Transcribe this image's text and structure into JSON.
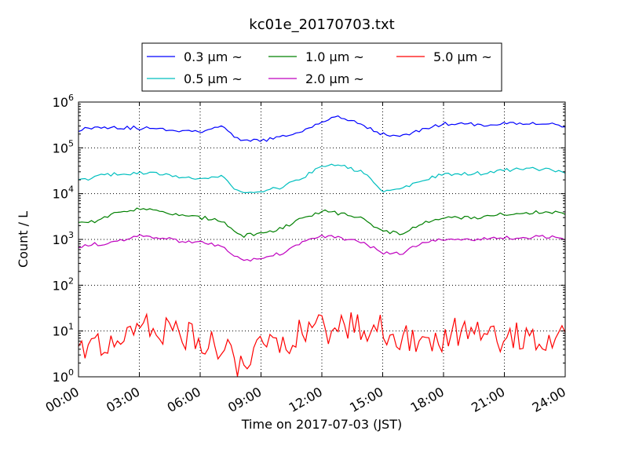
{
  "chart_data": {
    "type": "line",
    "title": "kc01e_20170703.txt",
    "xlabel": "Time on 2017-07-03 (JST)",
    "ylabel": "Count / L",
    "yscale": "log",
    "ylim": [
      1,
      1000000
    ],
    "xlim": [
      "00:00",
      "24:00"
    ],
    "grid": true,
    "legend_position": "top-center",
    "x_ticks": [
      "00:00",
      "03:00",
      "06:00",
      "09:00",
      "12:00",
      "15:00",
      "18:00",
      "21:00",
      "24:00"
    ],
    "y_ticks": [
      {
        "base": "10",
        "exp": "0",
        "value": 1
      },
      {
        "base": "10",
        "exp": "1",
        "value": 10
      },
      {
        "base": "10",
        "exp": "2",
        "value": 100
      },
      {
        "base": "10",
        "exp": "3",
        "value": 1000
      },
      {
        "base": "10",
        "exp": "4",
        "value": 10000
      },
      {
        "base": "10",
        "exp": "5",
        "value": 100000
      },
      {
        "base": "10",
        "exp": "6",
        "value": 1000000
      }
    ],
    "x_hours": [
      0,
      1,
      2,
      3,
      4,
      5,
      6,
      7,
      7.5,
      8,
      9,
      10,
      11,
      12,
      12.5,
      13,
      14,
      15,
      16,
      17,
      18,
      19,
      20,
      21,
      22,
      23,
      24
    ],
    "series": [
      {
        "name": "0.3 μm ~",
        "color": "#0000ff",
        "values": [
          250000,
          290000,
          280000,
          270000,
          260000,
          240000,
          230000,
          300000,
          200000,
          140000,
          145000,
          170000,
          220000,
          380000,
          480000,
          440000,
          320000,
          200000,
          180000,
          260000,
          330000,
          330000,
          320000,
          340000,
          340000,
          350000,
          300000
        ]
      },
      {
        "name": "0.5 μm ~",
        "color": "#00bfbf",
        "values": [
          19000,
          24000,
          27000,
          28000,
          27000,
          23000,
          21000,
          25000,
          16000,
          10500,
          11000,
          13500,
          22000,
          40000,
          45000,
          40000,
          30000,
          11000,
          13000,
          20000,
          26000,
          27000,
          28000,
          32000,
          34000,
          35000,
          30000
        ]
      },
      {
        "name": "1.0 μm ~",
        "color": "#008000",
        "values": [
          2300,
          2600,
          4000,
          4800,
          4000,
          3300,
          3000,
          2700,
          1800,
          1200,
          1300,
          1700,
          3000,
          4100,
          4000,
          3600,
          3000,
          1500,
          1300,
          2300,
          2900,
          3000,
          3100,
          3600,
          3800,
          4000,
          3600
        ]
      },
      {
        "name": "2.0 μm ~",
        "color": "#bf00bf",
        "values": [
          700,
          800,
          900,
          1300,
          1100,
          900,
          850,
          700,
          500,
          350,
          380,
          500,
          900,
          1150,
          1200,
          1050,
          900,
          500,
          500,
          900,
          950,
          950,
          1050,
          1100,
          1100,
          1150,
          1000
        ]
      },
      {
        "name": "5.0 μm ~",
        "color": "#ff0000",
        "values": [
          3,
          4,
          5,
          12,
          10,
          8,
          6,
          5,
          4,
          1.5,
          4,
          6,
          9,
          14,
          10,
          11,
          12,
          10,
          7,
          8,
          6,
          12,
          7,
          8,
          9,
          7,
          6
        ]
      }
    ]
  }
}
